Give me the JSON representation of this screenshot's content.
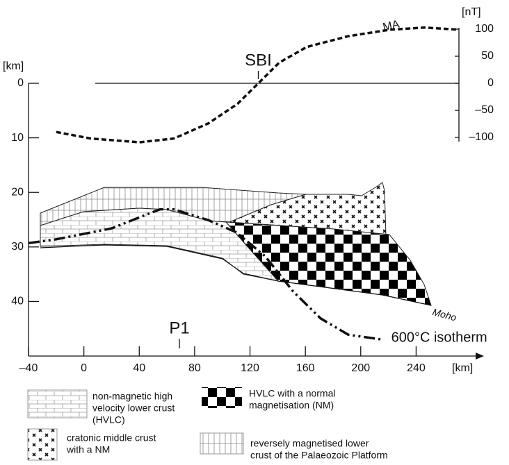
{
  "chart_data": {
    "type": "line",
    "ylabel": "[km]",
    "y2label": "[nT]",
    "xlabel": "[km]",
    "xlim": [
      -40,
      285
    ],
    "xticks": [
      {
        "value": -40,
        "label": "–40"
      },
      0,
      40,
      80,
      120,
      160,
      200,
      240
    ],
    "ylim": [
      50,
      0
    ],
    "yticks": [
      0,
      10,
      20,
      30,
      40
    ],
    "y2lim": [
      -100,
      100
    ],
    "y2ticks": [
      100,
      50,
      0,
      {
        "value": -50,
        "label": "–50"
      },
      {
        "value": -100,
        "label": "–100"
      }
    ],
    "grid": false,
    "series": [
      {
        "name": "MA",
        "axis": "y2",
        "color": "#111111",
        "x": [
          -20,
          5,
          40,
          65,
          90,
          111,
          126,
          141,
          161,
          191,
          221,
          246,
          271
        ],
        "values": [
          -90,
          -102,
          -109,
          -102,
          -74,
          -38,
          0,
          38,
          67,
          87,
          99,
          103,
          99
        ]
      },
      {
        "name": "600°C isotherm",
        "color": "#111111",
        "x": [
          -40,
          -20,
          20,
          55,
          65,
          90,
          110,
          131,
          151,
          171,
          191,
          216
        ],
        "values": [
          29.3,
          28.6,
          26.6,
          23.1,
          23.1,
          25.1,
          27.3,
          31.7,
          38.1,
          43.1,
          46.1,
          47
        ]
      }
    ],
    "annotations": [
      {
        "text": "SBI",
        "x": 126
      },
      {
        "text": "P1",
        "x": 69
      },
      {
        "text": "Moho"
      }
    ],
    "legend": [
      {
        "lines": [
          "non-magnetic high",
          "velocity lower crust",
          "(HVLC)"
        ]
      },
      {
        "lines": [
          "HVLC with a normal",
          "magnetisation (NM)"
        ]
      },
      {
        "lines": [
          "cratonic middle crust",
          " with a NM"
        ]
      },
      {
        "lines": [
          "reversely magnetised lower",
          "crust of the Palaeozoic Platform"
        ]
      }
    ]
  }
}
